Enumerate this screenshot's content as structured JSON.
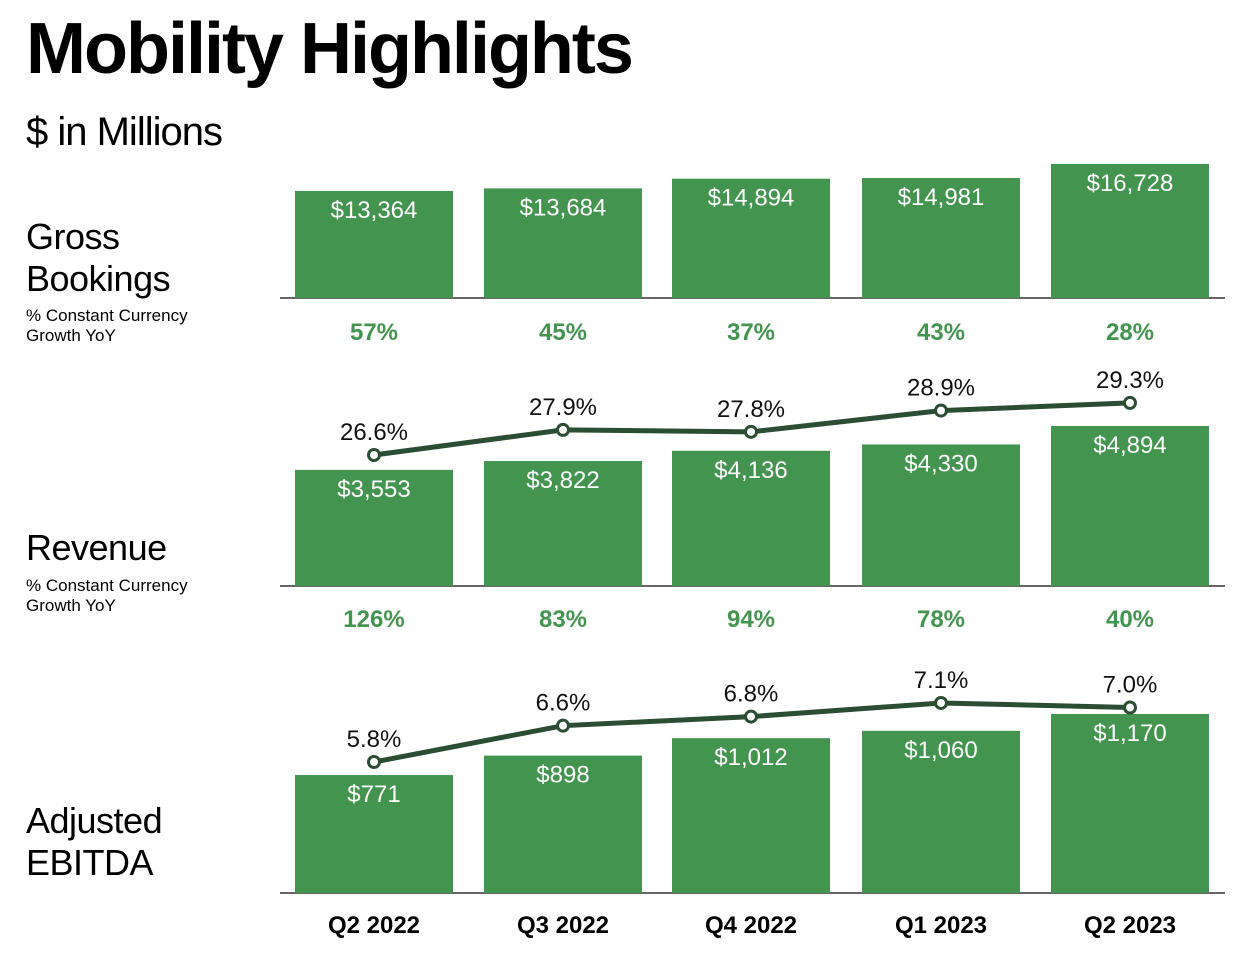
{
  "title": "Mobility Highlights",
  "subtitle": "$ in Millions",
  "chart_data": {
    "type": "bar",
    "categories": [
      "Q2 2022",
      "Q3 2022",
      "Q4 2022",
      "Q1 2023",
      "Q2 2023"
    ],
    "colors": {
      "bar": "#43944f",
      "line": "#2b4d33",
      "growth_text": "#43944f"
    },
    "panels": [
      {
        "label": "Gross Bookings",
        "sublabel": "% Constant Currency Growth YoY",
        "values": [
          13364,
          13684,
          14894,
          14981,
          16728
        ],
        "value_labels": [
          "$13,364",
          "$13,684",
          "$14,894",
          "$14,981",
          "$16,728"
        ],
        "growth": [
          "57%",
          "45%",
          "37%",
          "43%",
          "28%"
        ]
      },
      {
        "label": "Revenue",
        "sublabel": "% Constant Currency Growth YoY",
        "values": [
          3553,
          3822,
          4136,
          4330,
          4894
        ],
        "value_labels": [
          "$3,553",
          "$3,822",
          "$4,136",
          "$4,330",
          "$4,894"
        ],
        "growth": [
          "126%",
          "83%",
          "94%",
          "78%",
          "40%"
        ],
        "line": {
          "type": "line",
          "values": [
            26.6,
            27.9,
            27.8,
            28.9,
            29.3
          ],
          "labels": [
            "26.6%",
            "27.9%",
            "27.8%",
            "28.9%",
            "29.3%"
          ]
        }
      },
      {
        "label": "Adjusted EBITDA",
        "values": [
          771,
          898,
          1012,
          1060,
          1170
        ],
        "value_labels": [
          "$771",
          "$898",
          "$1,012",
          "$1,060",
          "$1,170"
        ],
        "line": {
          "type": "line",
          "values": [
            5.8,
            6.6,
            6.8,
            7.1,
            7.0
          ],
          "labels": [
            "5.8%",
            "6.6%",
            "6.8%",
            "7.1%",
            "7.0%"
          ]
        }
      }
    ]
  }
}
